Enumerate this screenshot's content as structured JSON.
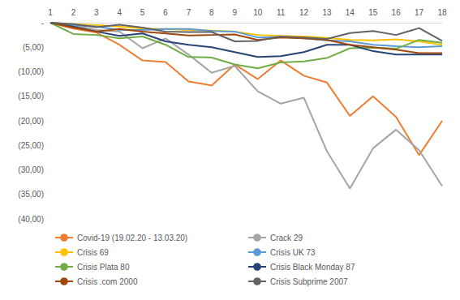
{
  "chart_data": {
    "type": "line",
    "categories": [
      1,
      2,
      3,
      4,
      5,
      6,
      7,
      8,
      9,
      10,
      11,
      12,
      13,
      14,
      15,
      16,
      17,
      18
    ],
    "ylim": [
      -40,
      0
    ],
    "yticks": [
      {
        "value": -40,
        "label": "(40,00)"
      },
      {
        "value": -35,
        "label": "(35,00)"
      },
      {
        "value": -30,
        "label": "(30,00)"
      },
      {
        "value": -25,
        "label": "(25,00)"
      },
      {
        "value": -20,
        "label": "(20,00)"
      },
      {
        "value": -15,
        "label": "(15,00)"
      },
      {
        "value": -10,
        "label": "(10,00)"
      },
      {
        "value": -5,
        "label": "(5,00)"
      },
      {
        "value": 0,
        "label": "-"
      }
    ],
    "grid": false,
    "legend": "bottom",
    "series": [
      {
        "name": "Covid-19 (19.02.20 - 13.03.20)",
        "color": "#ed7d31",
        "values": [
          0,
          -1.2,
          -2,
          -4.5,
          -7.7,
          -8,
          -12,
          -12.8,
          -8.5,
          -11.5,
          -7.7,
          -10.8,
          -12.2,
          -19,
          -15,
          -19.2,
          -27,
          -20
        ]
      },
      {
        "name": "Crack 29",
        "color": "#a5a5a5",
        "values": [
          0,
          -0.5,
          -1.5,
          -1.8,
          -5.2,
          -3.2,
          -6.5,
          -10.2,
          -8.8,
          -14,
          -16.5,
          -15.3,
          -26.2,
          -33.8,
          -25.6,
          -21.8,
          -26,
          -33.3
        ]
      },
      {
        "name": "Crisis 69",
        "color": "#ffc000",
        "values": [
          0,
          -0.3,
          -0.5,
          -0.8,
          -1.2,
          -1.3,
          -1.5,
          -1.6,
          -1.8,
          -2.5,
          -2.7,
          -2.8,
          -3.1,
          -3.5,
          -3.6,
          -3.4,
          -3.8,
          -4.5
        ]
      },
      {
        "name": "Crisis UK 73",
        "color": "#5b9bd5",
        "values": [
          0,
          -0.4,
          -0.8,
          -1.5,
          -1.5,
          -1.3,
          -1.3,
          -1.7,
          -1.8,
          -3,
          -2.9,
          -3.2,
          -3.6,
          -3.8,
          -4.5,
          -4.8,
          -5,
          -4.8
        ]
      },
      {
        "name": "Crisis Plata 80",
        "color": "#70ad47",
        "values": [
          0,
          -2.3,
          -2.5,
          -3.2,
          -2.8,
          -4.5,
          -7,
          -7.1,
          -8.5,
          -9.3,
          -8.1,
          -7.9,
          -7.2,
          -5.2,
          -5.1,
          -5.3,
          -3.5,
          -4.1
        ]
      },
      {
        "name": "Crisis Black Monday 87",
        "color": "#264478",
        "values": [
          0,
          -0.8,
          -1.8,
          -2.7,
          -2.2,
          -3.8,
          -4.5,
          -5,
          -6,
          -7,
          -6.8,
          -6,
          -4.5,
          -4.5,
          -5.8,
          -6.5,
          -6.5,
          -6.5
        ]
      },
      {
        "name": "Crisis .com 2000",
        "color": "#9e480e",
        "values": [
          0,
          -1,
          -1.8,
          -1.3,
          -1.8,
          -2.2,
          -2.6,
          -2.5,
          -2.4,
          -3.5,
          -3,
          -3.2,
          -3.5,
          -4.5,
          -5,
          -5.5,
          -6.2,
          -6.2
        ]
      },
      {
        "name": "Crisis Subprime 2007",
        "color": "#636363",
        "values": [
          0,
          -0.3,
          -0.9,
          -0.4,
          -1,
          -1.8,
          -1.9,
          -1.9,
          -3.8,
          -3.7,
          -2.8,
          -3,
          -3.3,
          -2.1,
          -1.7,
          -2.5,
          -1.1,
          -3.7
        ]
      }
    ]
  }
}
